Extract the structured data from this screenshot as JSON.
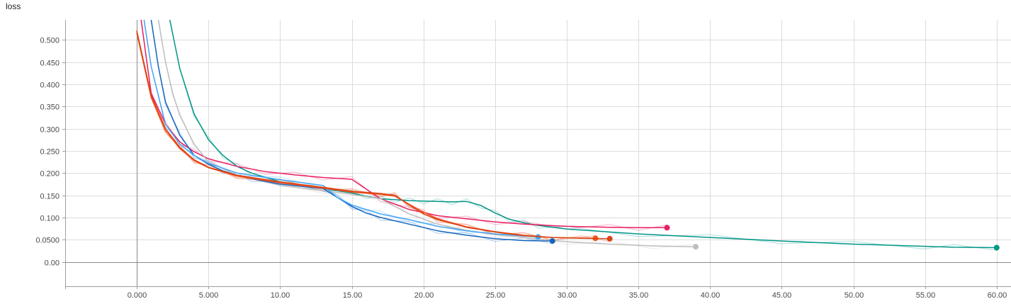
{
  "chart_data": {
    "type": "line",
    "title": "loss",
    "xlabel": "",
    "ylabel": "",
    "xlim": [
      -5,
      61
    ],
    "ylim": [
      -0.055,
      0.545
    ],
    "x_ticks": [
      0,
      5,
      10,
      15,
      20,
      25,
      30,
      35,
      40,
      45,
      50,
      55,
      60
    ],
    "x_tick_labels": [
      "0.000",
      "5.000",
      "10.00",
      "15.00",
      "20.00",
      "25.00",
      "30.00",
      "35.00",
      "40.00",
      "45.00",
      "50.00",
      "55.00",
      "60.00"
    ],
    "y_ticks": [
      0,
      0.05,
      0.1,
      0.15,
      0.2,
      0.25,
      0.3,
      0.35,
      0.4,
      0.45,
      0.5
    ],
    "y_tick_labels": [
      "0.00",
      "0.0500",
      "0.100",
      "0.150",
      "0.200",
      "0.250",
      "0.300",
      "0.350",
      "0.400",
      "0.450",
      "0.500"
    ],
    "grid": true,
    "legend": "none",
    "series": [
      {
        "color": "#009688",
        "x": [
          2.3,
          3,
          4,
          5,
          6,
          7,
          8,
          10,
          13,
          15,
          16,
          17,
          18,
          19,
          20,
          21,
          22,
          23,
          24,
          25,
          26,
          27,
          28,
          30,
          35,
          40,
          45,
          50,
          55,
          57,
          60
        ],
        "y": [
          0.545,
          0.435,
          0.333,
          0.275,
          0.24,
          0.215,
          0.2,
          0.18,
          0.165,
          0.155,
          0.148,
          0.142,
          0.14,
          0.138,
          0.137,
          0.136,
          0.135,
          0.136,
          0.127,
          0.11,
          0.096,
          0.088,
          0.082,
          0.074,
          0.063,
          0.055,
          0.047,
          0.04,
          0.035,
          0.033,
          0.032
        ]
      },
      {
        "color": "#e91e63",
        "x": [
          0.3,
          0.7,
          1,
          2,
          3,
          4,
          5,
          7,
          9,
          11,
          13,
          15,
          17,
          19,
          21,
          23,
          25,
          27,
          30,
          33,
          35,
          37
        ],
        "y": [
          0.545,
          0.45,
          0.38,
          0.31,
          0.27,
          0.248,
          0.232,
          0.215,
          0.203,
          0.196,
          0.19,
          0.186,
          0.142,
          0.118,
          0.104,
          0.097,
          0.09,
          0.085,
          0.08,
          0.078,
          0.077,
          0.077
        ]
      },
      {
        "color": "#bdbdbd",
        "x": [
          1.5,
          2,
          2.5,
          3,
          4,
          5,
          7,
          10,
          13,
          15,
          17,
          19,
          21,
          23,
          25,
          27,
          30,
          33,
          36,
          39
        ],
        "y": [
          0.545,
          0.45,
          0.38,
          0.33,
          0.265,
          0.225,
          0.195,
          0.172,
          0.16,
          0.152,
          0.142,
          0.108,
          0.085,
          0.071,
          0.061,
          0.055,
          0.045,
          0.04,
          0.036,
          0.034
        ]
      },
      {
        "color": "#1565c0",
        "x": [
          1,
          1.5,
          2,
          3,
          4,
          5,
          6,
          7,
          8,
          10,
          13,
          14,
          15,
          16,
          17,
          19,
          21,
          23,
          25,
          27,
          29
        ],
        "y": [
          0.545,
          0.44,
          0.36,
          0.285,
          0.24,
          0.22,
          0.205,
          0.195,
          0.187,
          0.175,
          0.165,
          0.145,
          0.125,
          0.11,
          0.1,
          0.085,
          0.07,
          0.06,
          0.052,
          0.048,
          0.047
        ]
      },
      {
        "color": "#42a5f5",
        "x": [
          0.5,
          1,
          2,
          3,
          4,
          5,
          7,
          10,
          13,
          14,
          15,
          17,
          19,
          21,
          23,
          25,
          28
        ],
        "y": [
          0.545,
          0.44,
          0.31,
          0.265,
          0.24,
          0.222,
          0.2,
          0.185,
          0.172,
          0.145,
          0.128,
          0.108,
          0.095,
          0.08,
          0.07,
          0.063,
          0.056
        ]
      },
      {
        "color": "#f4511e",
        "x": [
          0,
          1,
          2,
          3,
          4,
          5,
          7,
          10,
          13,
          15,
          17,
          18,
          19,
          20,
          21,
          23,
          25,
          27,
          29,
          32
        ],
        "y": [
          0.515,
          0.37,
          0.295,
          0.255,
          0.228,
          0.212,
          0.193,
          0.178,
          0.166,
          0.157,
          0.152,
          0.148,
          0.13,
          0.112,
          0.097,
          0.079,
          0.068,
          0.06,
          0.055,
          0.053
        ]
      },
      {
        "color": "#d84315",
        "x": [
          0,
          1,
          2,
          3,
          4,
          5,
          7,
          10,
          13,
          15,
          17,
          18,
          19,
          20,
          21,
          23,
          25,
          27,
          29,
          31,
          33
        ],
        "y": [
          0.52,
          0.375,
          0.3,
          0.258,
          0.23,
          0.213,
          0.195,
          0.18,
          0.168,
          0.159,
          0.154,
          0.15,
          0.128,
          0.108,
          0.095,
          0.078,
          0.067,
          0.059,
          0.055,
          0.053,
          0.052
        ]
      }
    ]
  }
}
